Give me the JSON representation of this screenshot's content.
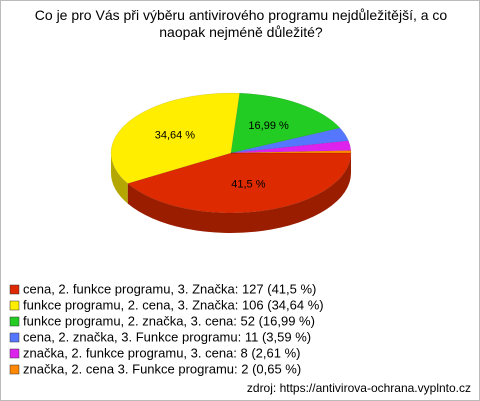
{
  "chart_data": {
    "type": "pie",
    "title": "Co je pro Vás při výběru antivirového programu nejdůležitější, a co naopak nejméně důležité?",
    "categories": [
      "cena, 2. funkce programu, 3. Značka: 127 (41,5 %)",
      "funkce programu, 2. cena, 3. Značka: 106 (34,64 %)",
      "funkce programu, 2. značka, 3. cena: 52 (16,99 %)",
      "cena, 2. značka, 3. Funkce programu: 11 (3,59 %)",
      "značka, 2. funkce programu, 3. cena: 8 (2,61 %)",
      "značka, 2. cena 3. Funkce programu: 2 (0,65 %)"
    ],
    "values": [
      41.5,
      34.64,
      16.99,
      3.59,
      2.61,
      0.65
    ],
    "value_labels": [
      "41,5 %",
      "34,64 %",
      "16,99 %",
      null,
      null,
      null
    ],
    "colors": [
      "#dd2a00",
      "#ffee00",
      "#22cc22",
      "#5577ff",
      "#dd22ee",
      "#ff8800"
    ],
    "source": "zdroj: https://antivirova-ochrana.vyplnto.cz"
  }
}
